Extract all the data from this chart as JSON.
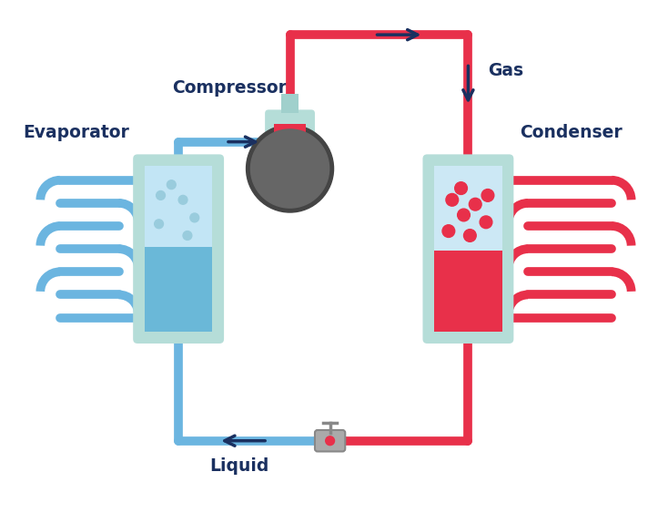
{
  "bg_color": "#ffffff",
  "blue": "#6bb5e0",
  "blue_dark": "#1a3060",
  "red": "#e8304a",
  "teal": "#b5ddd8",
  "teal_dark": "#7ec4bc",
  "blue_liquid": "#5ab0d8",
  "blue_gas": "#c5e5f5",
  "labels": {
    "evaporator": "Evaporator",
    "compressor": "Compressor",
    "condenser": "Condenser",
    "gas": "Gas",
    "liquid": "Liquid"
  },
  "lfs": 13.5,
  "lfw": "bold"
}
